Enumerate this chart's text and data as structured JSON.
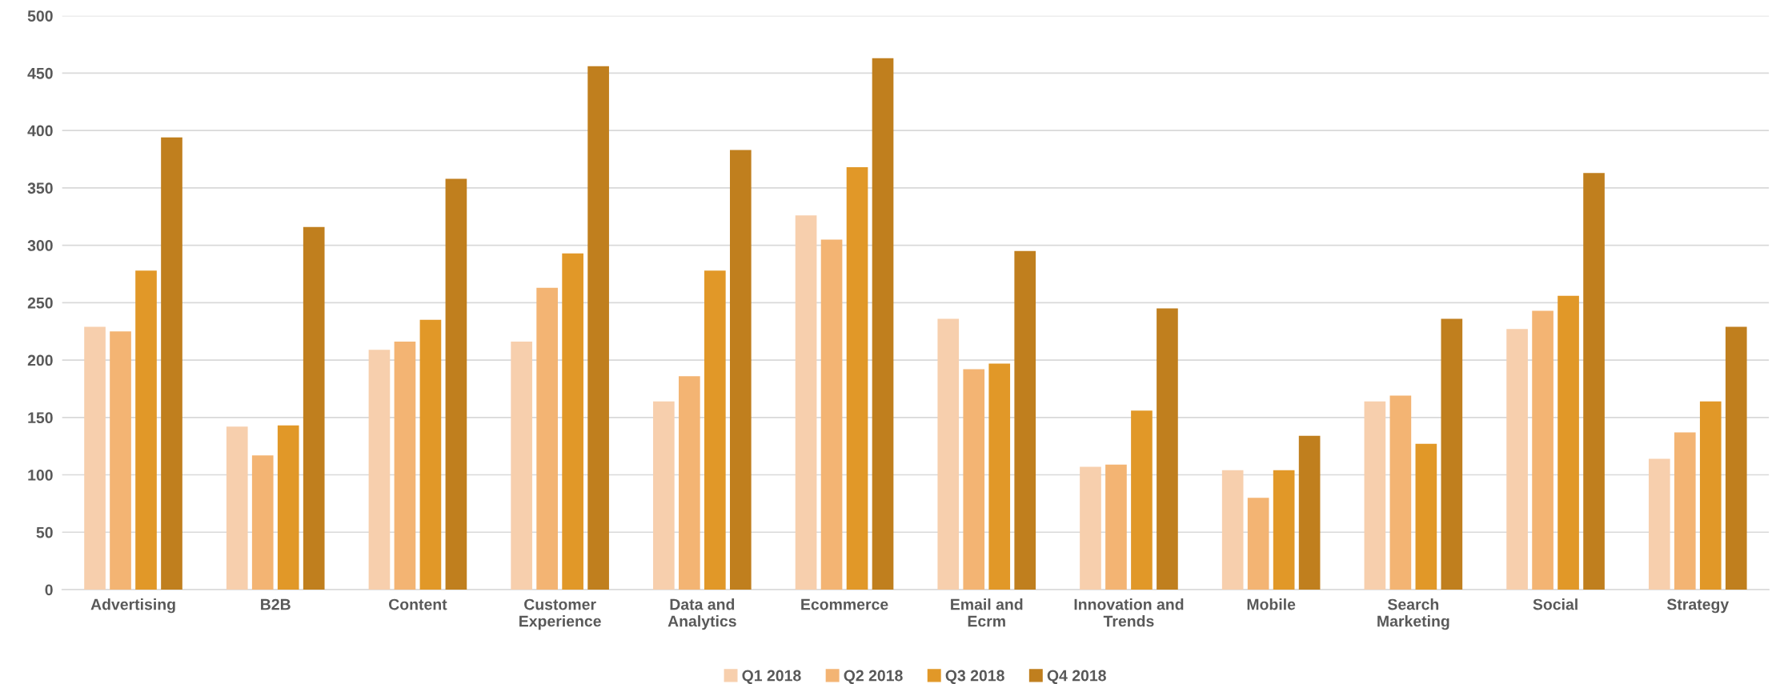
{
  "chart_data": {
    "type": "bar",
    "categories": [
      "Advertising",
      "B2B",
      "Content",
      "Customer Experience",
      "Data and Analytics",
      "Ecommerce",
      "Email and Ecrm",
      "Innovation and Trends",
      "Mobile",
      "Search Marketing",
      "Social",
      "Strategy"
    ],
    "series": [
      {
        "name": "Q1 2018",
        "color": "#f7cfad",
        "values": [
          229,
          142,
          209,
          216,
          164,
          326,
          236,
          107,
          104,
          164,
          227,
          114
        ]
      },
      {
        "name": "Q2 2018",
        "color": "#f3b473",
        "values": [
          225,
          117,
          216,
          263,
          186,
          305,
          192,
          109,
          80,
          169,
          243,
          137
        ]
      },
      {
        "name": "Q3 2018",
        "color": "#e19828",
        "values": [
          278,
          143,
          235,
          293,
          278,
          368,
          197,
          156,
          104,
          127,
          256,
          164
        ]
      },
      {
        "name": "Q4 2018",
        "color": "#c07f1e",
        "values": [
          394,
          316,
          358,
          456,
          383,
          463,
          295,
          245,
          134,
          236,
          363,
          229
        ]
      }
    ],
    "ylim": [
      0,
      500
    ],
    "yticks": [
      0,
      50,
      100,
      150,
      200,
      250,
      300,
      350,
      400,
      450,
      500
    ],
    "grid": "y",
    "legend": "bottom"
  }
}
